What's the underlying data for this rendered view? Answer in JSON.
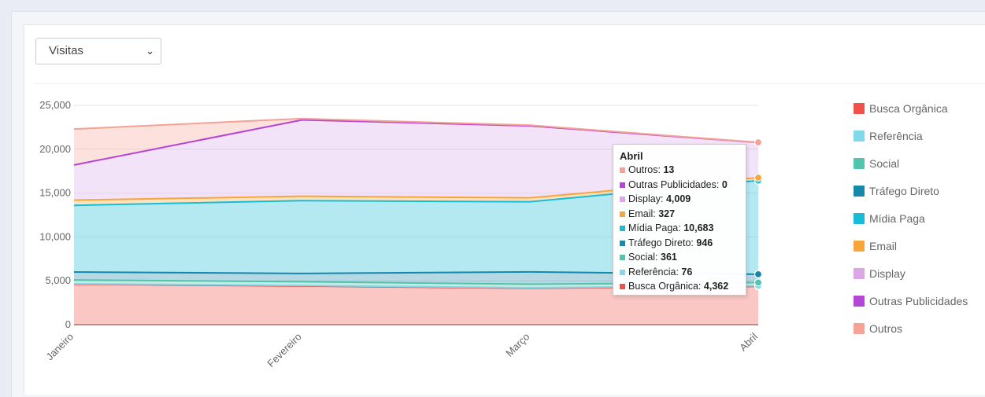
{
  "controls": {
    "metric_select": {
      "selected": "Visitas"
    }
  },
  "chart_data": {
    "type": "area",
    "stacked": true,
    "categories": [
      "Janeiro",
      "Fevereiro",
      "Março",
      "Abril"
    ],
    "ylim": [
      0,
      25000
    ],
    "yticks": [
      "0",
      "5,000",
      "10,000",
      "15,000",
      "20,000",
      "25,000"
    ],
    "grid": true,
    "legend_position": "right",
    "series": [
      {
        "name": "Busca Orgânica",
        "color": "#f0514a",
        "values": [
          4600,
          4400,
          4150,
          4362
        ]
      },
      {
        "name": "Referência",
        "color": "#7fd8ec",
        "values": [
          60,
          70,
          60,
          76
        ]
      },
      {
        "name": "Social",
        "color": "#52c3ac",
        "values": [
          440,
          420,
          400,
          361
        ]
      },
      {
        "name": "Tráfego Direto",
        "color": "#1688ab",
        "values": [
          900,
          950,
          1400,
          946
        ]
      },
      {
        "name": "Mídia Paga",
        "color": "#18bcd6",
        "values": [
          7600,
          8300,
          8000,
          10683
        ]
      },
      {
        "name": "Email",
        "color": "#f8a53b",
        "values": [
          600,
          500,
          450,
          327
        ]
      },
      {
        "name": "Display",
        "color": "#dba7e8",
        "values": [
          4000,
          8700,
          8200,
          4009
        ]
      },
      {
        "name": "Outras Publicidades",
        "color": "#b547d6",
        "values": [
          0,
          0,
          0,
          0
        ]
      },
      {
        "name": "Outros",
        "color": "#f5a196",
        "values": [
          4100,
          150,
          80,
          13
        ]
      }
    ],
    "tooltip": {
      "title": "Abril",
      "rows": [
        {
          "label": "Outros",
          "value": "13",
          "color": "#f5a196"
        },
        {
          "label": "Outras Publicidades",
          "value": "0",
          "color": "#b547d6"
        },
        {
          "label": "Display",
          "value": "4,009",
          "color": "#dba7e8"
        },
        {
          "label": "Email",
          "value": "327",
          "color": "#f8a53b"
        },
        {
          "label": "Mídia Paga",
          "value": "10,683",
          "color": "#18bcd6"
        },
        {
          "label": "Tráfego Direto",
          "value": "946",
          "color": "#1688ab"
        },
        {
          "label": "Social",
          "value": "361",
          "color": "#52c3ac"
        },
        {
          "label": "Referência",
          "value": "76",
          "color": "#7fd8ec"
        },
        {
          "label": "Busca Orgânica",
          "value": "4,362",
          "color": "#f0514a"
        }
      ]
    }
  }
}
